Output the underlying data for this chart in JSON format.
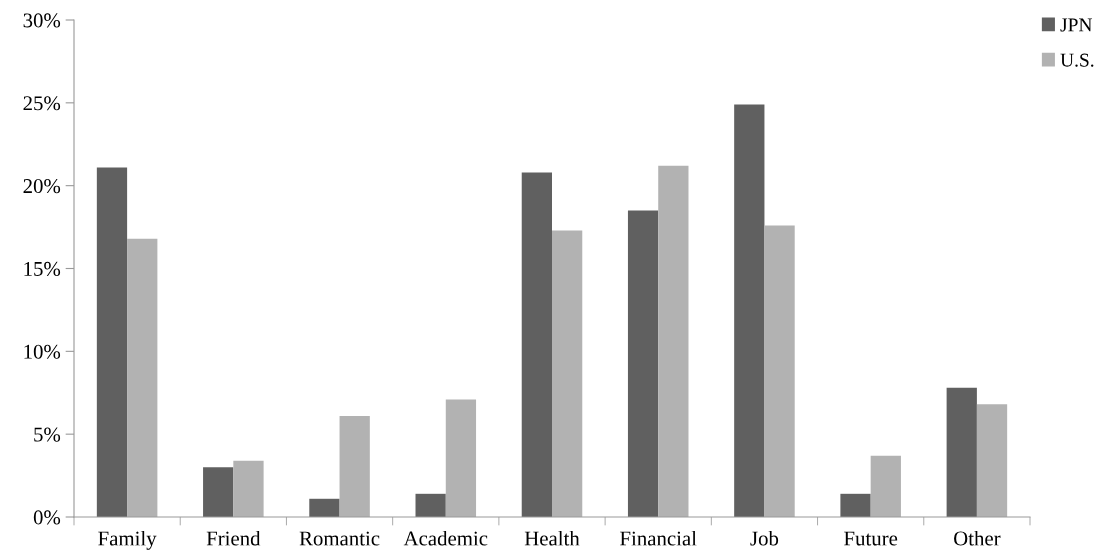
{
  "chart_data": {
    "type": "bar",
    "categories": [
      "Family",
      "Friend",
      "Romantic",
      "Academic",
      "Health",
      "Financial",
      "Job",
      "Future",
      "Other"
    ],
    "series": [
      {
        "name": "JPN",
        "color": "#606060",
        "values": [
          21.1,
          3.0,
          1.1,
          1.4,
          20.8,
          18.5,
          24.9,
          1.4,
          7.8
        ]
      },
      {
        "name": "U.S.",
        "color": "#b2b2b2",
        "values": [
          16.8,
          3.4,
          6.1,
          7.1,
          17.3,
          21.2,
          17.6,
          3.7,
          6.8
        ]
      }
    ],
    "ylim": [
      0,
      30
    ],
    "yticks": [
      {
        "value": 0,
        "label": "0%"
      },
      {
        "value": 5,
        "label": "5%"
      },
      {
        "value": 10,
        "label": "10%"
      },
      {
        "value": 15,
        "label": "15%"
      },
      {
        "value": 20,
        "label": "20%"
      },
      {
        "value": 25,
        "label": "25%"
      },
      {
        "value": 30,
        "label": "30%"
      }
    ],
    "grid": false,
    "legend": "top right"
  }
}
